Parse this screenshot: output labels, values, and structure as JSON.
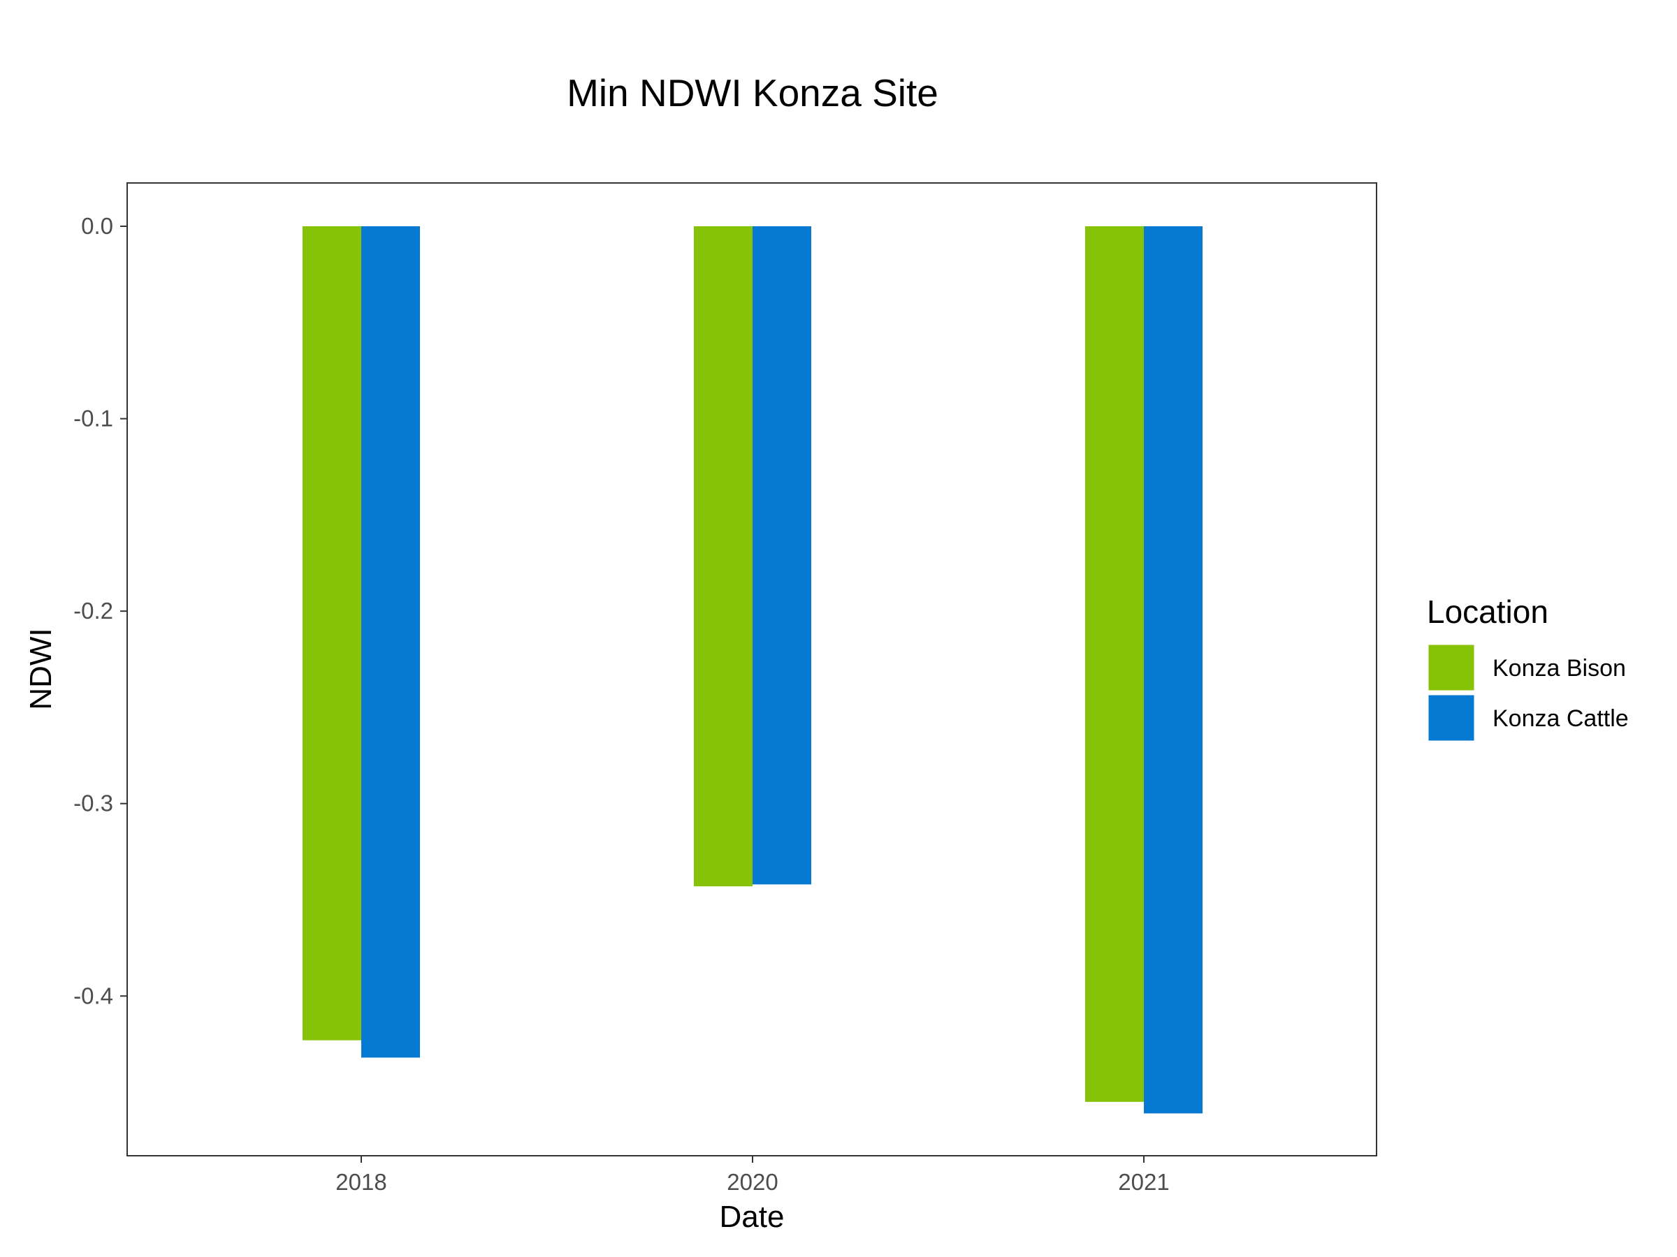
{
  "chart_data": {
    "type": "bar",
    "title": "Min NDWI Konza Site",
    "xlabel": "Date",
    "ylabel": "NDWI",
    "categories": [
      "2018",
      "2020",
      "2021"
    ],
    "series": [
      {
        "name": "Konza Bison",
        "color": "#86c206",
        "values": [
          -0.423,
          -0.343,
          -0.455
        ]
      },
      {
        "name": "Konza Cattle",
        "color": "#067ad3",
        "values": [
          -0.432,
          -0.342,
          -0.461
        ]
      }
    ],
    "yticks": [
      0.0,
      -0.1,
      -0.2,
      -0.3,
      -0.4
    ],
    "ytick_labels": [
      "0.0",
      "-0.1",
      "-0.2",
      "-0.3",
      "-0.4"
    ],
    "ylim": [
      -0.483,
      0.0225
    ],
    "grid": false,
    "legend": {
      "title": "Location",
      "position": "right"
    }
  }
}
